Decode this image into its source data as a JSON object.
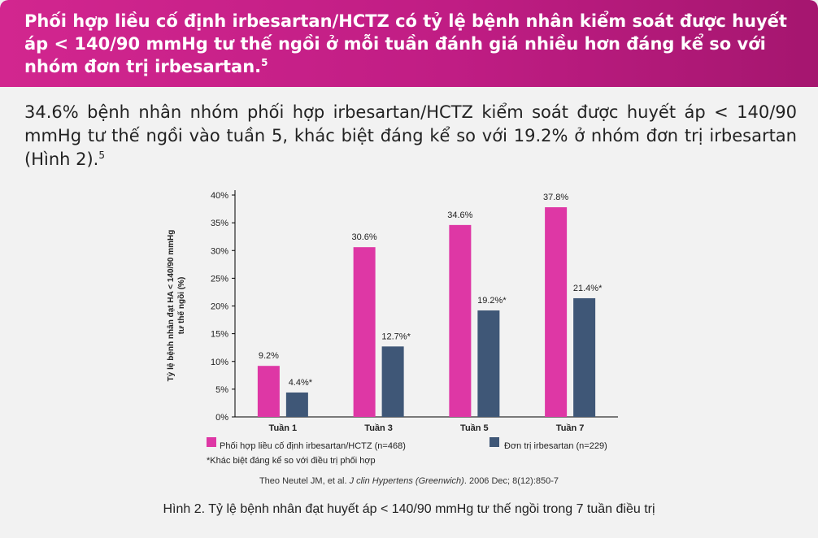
{
  "header": {
    "title": "Phối hợp liều cố định irbesartan/HCTZ có tỷ lệ bệnh nhân kiểm soát được huyết áp < 140/90 mmHg tư thế ngồi ở mỗi tuần đánh giá nhiều hơn đáng kể so với nhóm đơn trị irbesartan.",
    "ref": "5"
  },
  "intro": {
    "text": "34.6% bệnh nhân nhóm phối hợp irbesartan/HCTZ kiểm soát được huyết áp < 140/90 mmHg tư thế ngồi vào tuần 5, khác biệt đáng kể so với 19.2% ở nhóm đơn trị irbesartan (Hình 2).",
    "ref": "5"
  },
  "colors": {
    "combo": "#de37a5",
    "mono": "#3f5777",
    "header": "#c01d84"
  },
  "chart_data": {
    "type": "bar",
    "ylabel_line1": "Tỷ lệ bệnh nhân đạt HA < 140/90 mmHg",
    "ylabel_line2": "tư thế ngồi (%)",
    "ylim": [
      0,
      40
    ],
    "yticks": [
      "0%",
      "5%",
      "10%",
      "15%",
      "20%",
      "25%",
      "30%",
      "35%",
      "40%"
    ],
    "categories": [
      "Tuần 1",
      "Tuần 3",
      "Tuần 5",
      "Tuần 7"
    ],
    "series": [
      {
        "name": "Phối hợp liều cố định irbesartan/HCTZ (n=468)",
        "values": [
          9.2,
          30.6,
          34.6,
          37.8
        ],
        "labels": [
          "9.2%",
          "30.6%",
          "34.6%",
          "37.8%"
        ]
      },
      {
        "name": "Đơn trị irbesartan (n=229)",
        "values": [
          4.4,
          12.7,
          19.2,
          21.4
        ],
        "labels": [
          "4.4%*",
          "12.7%*",
          "19.2%*",
          "21.4%*"
        ]
      }
    ],
    "footnote": "*Khác biệt đáng kể so với điều trị phối hợp",
    "legend": "bottom"
  },
  "source": {
    "prefix": "Theo Neutel JM, et al. ",
    "journal": "J clin Hypertens (Greenwich)",
    "suffix": ". 2006 Dec; 8(12):850-7"
  },
  "caption": "Hình 2. Tỷ lệ bệnh nhân đạt huyết áp < 140/90 mmHg tư thế ngồi trong 7 tuần điều trị"
}
